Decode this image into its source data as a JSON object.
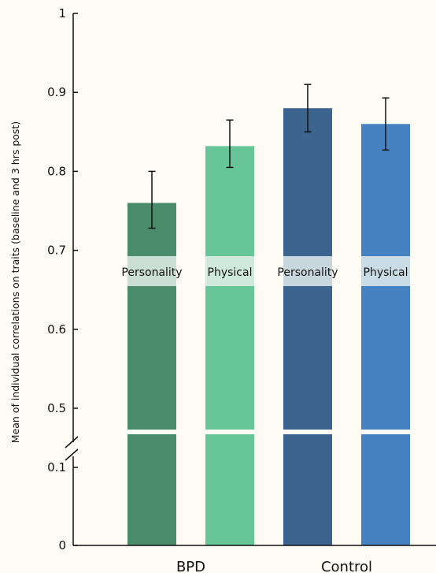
{
  "chart_data": {
    "type": "bar",
    "title": "",
    "ylabel": "Mean of individual correlations on traits (baseline and 3 hrs post)",
    "xlabel": "",
    "ylim": [
      0,
      1
    ],
    "axis_break": {
      "from": 0.1,
      "to": 0.5
    },
    "yticks": [
      {
        "value": 0,
        "label": "0"
      },
      {
        "value": 0.1,
        "label": "0.1"
      },
      {
        "value": 0.5,
        "label": "0.5"
      },
      {
        "value": 0.6,
        "label": "0.6"
      },
      {
        "value": 0.7,
        "label": "0.7"
      },
      {
        "value": 0.8,
        "label": "0.8"
      },
      {
        "value": 0.9,
        "label": "0.9"
      },
      {
        "value": 1.0,
        "label": "1"
      }
    ],
    "groups": [
      {
        "label": "BPD"
      },
      {
        "label": "Control"
      }
    ],
    "bars": [
      {
        "label": "Personality",
        "group": 0,
        "value": 0.76,
        "err_low": 0.728,
        "err_high": 0.8,
        "color": "#4a8c6a"
      },
      {
        "label": "Physical",
        "group": 0,
        "value": 0.832,
        "err_low": 0.805,
        "err_high": 0.865,
        "color": "#68c597"
      },
      {
        "label": "Personality",
        "group": 1,
        "value": 0.88,
        "err_low": 0.85,
        "err_high": 0.91,
        "color": "#3d638f"
      },
      {
        "label": "Physical",
        "group": 1,
        "value": 0.86,
        "err_low": 0.827,
        "err_high": 0.893,
        "color": "#4682c1"
      }
    ],
    "grid": false,
    "legend": "none",
    "background_color": "#fdfbf3",
    "label_band_color": "#e6f0ee"
  }
}
